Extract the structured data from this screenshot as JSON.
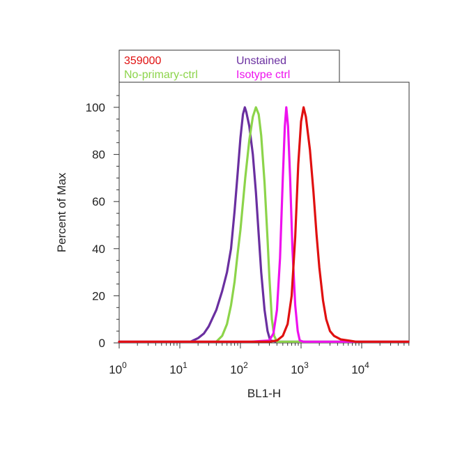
{
  "chart_data": {
    "type": "line",
    "x_scale": "log",
    "xlabel": "BL1-H",
    "ylabel": "Percent of Max",
    "xlim": [
      1,
      60000
    ],
    "ylim": [
      0,
      110
    ],
    "x_ticks": [
      {
        "value": 1,
        "base": "10",
        "exp": "0"
      },
      {
        "value": 10,
        "base": "10",
        "exp": "1"
      },
      {
        "value": 100,
        "base": "10",
        "exp": "2"
      },
      {
        "value": 1000,
        "base": "10",
        "exp": "3"
      },
      {
        "value": 10000,
        "base": "10",
        "exp": "4"
      }
    ],
    "y_ticks": [
      0,
      20,
      40,
      60,
      80,
      100
    ],
    "grid": false,
    "legend_position": "top-left-outside",
    "series": [
      {
        "name": "Unstained",
        "color": "#6a2fa0",
        "points": [
          [
            1,
            0.5
          ],
          [
            15,
            0.5
          ],
          [
            20,
            2
          ],
          [
            25,
            4
          ],
          [
            30,
            7
          ],
          [
            40,
            14
          ],
          [
            50,
            22
          ],
          [
            60,
            30
          ],
          [
            70,
            40
          ],
          [
            80,
            56
          ],
          [
            90,
            72
          ],
          [
            100,
            87
          ],
          [
            110,
            97
          ],
          [
            118,
            100
          ],
          [
            125,
            98
          ],
          [
            140,
            92
          ],
          [
            160,
            80
          ],
          [
            180,
            64
          ],
          [
            200,
            46
          ],
          [
            220,
            30
          ],
          [
            250,
            14
          ],
          [
            280,
            5
          ],
          [
            310,
            1
          ],
          [
            400,
            0.5
          ],
          [
            60000,
            0.5
          ]
        ]
      },
      {
        "name": "No-primary-ctrl",
        "color": "#8cd44a",
        "points": [
          [
            1,
            0.5
          ],
          [
            40,
            0.5
          ],
          [
            50,
            3
          ],
          [
            60,
            8
          ],
          [
            70,
            16
          ],
          [
            80,
            26
          ],
          [
            90,
            38
          ],
          [
            100,
            48
          ],
          [
            120,
            70
          ],
          [
            140,
            86
          ],
          [
            160,
            96
          ],
          [
            180,
            100
          ],
          [
            200,
            97
          ],
          [
            220,
            88
          ],
          [
            250,
            68
          ],
          [
            280,
            44
          ],
          [
            300,
            28
          ],
          [
            330,
            10
          ],
          [
            360,
            3
          ],
          [
            400,
            0.5
          ],
          [
            60000,
            0.5
          ]
        ]
      },
      {
        "name": "Isotype ctrl",
        "color": "#ee11ee",
        "points": [
          [
            1,
            0.5
          ],
          [
            150,
            0.5
          ],
          [
            300,
            1
          ],
          [
            350,
            4
          ],
          [
            400,
            14
          ],
          [
            450,
            36
          ],
          [
            500,
            70
          ],
          [
            540,
            92
          ],
          [
            570,
            100
          ],
          [
            610,
            92
          ],
          [
            660,
            70
          ],
          [
            720,
            40
          ],
          [
            800,
            16
          ],
          [
            880,
            5
          ],
          [
            950,
            1
          ],
          [
            1100,
            0.5
          ],
          [
            60000,
            0.5
          ]
        ]
      },
      {
        "name": "359000",
        "color": "#e01010",
        "points": [
          [
            1,
            0.5
          ],
          [
            300,
            0.5
          ],
          [
            400,
            1
          ],
          [
            500,
            3
          ],
          [
            600,
            8
          ],
          [
            700,
            20
          ],
          [
            800,
            45
          ],
          [
            900,
            76
          ],
          [
            1000,
            94
          ],
          [
            1100,
            100
          ],
          [
            1200,
            96
          ],
          [
            1400,
            82
          ],
          [
            1600,
            64
          ],
          [
            1800,
            46
          ],
          [
            2000,
            32
          ],
          [
            2300,
            18
          ],
          [
            2600,
            10
          ],
          [
            3000,
            5
          ],
          [
            3500,
            3
          ],
          [
            4500,
            1.5
          ],
          [
            6000,
            1
          ],
          [
            8000,
            0.5
          ],
          [
            60000,
            0.5
          ]
        ]
      }
    ],
    "legend": [
      {
        "label": "359000",
        "color": "#e01010"
      },
      {
        "label": "Unstained",
        "color": "#6a2fa0"
      },
      {
        "label": "No-primary-ctrl",
        "color": "#8cd44a"
      },
      {
        "label": "Isotype ctrl",
        "color": "#ee11ee"
      }
    ]
  }
}
